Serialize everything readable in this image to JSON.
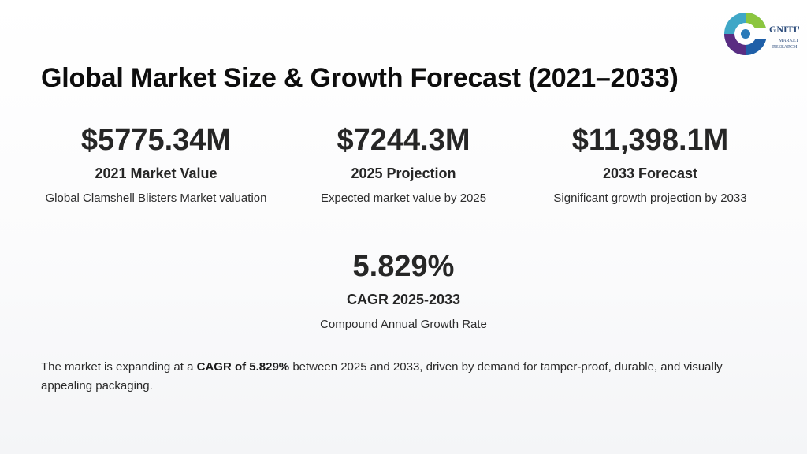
{
  "logo": {
    "brand_text": "GNITIVE",
    "sub_line1": "MARKET",
    "sub_line2": "RESEARCH",
    "colors": [
      "#1f6fb2",
      "#3fb0c9",
      "#8cc63f",
      "#5a2d82"
    ]
  },
  "title": "Global Market Size & Growth Forecast (2021–2033)",
  "stats": [
    {
      "value": "$5775.34M",
      "label": "2021 Market Value",
      "desc": "Global Clamshell Blisters Market valuation"
    },
    {
      "value": "$7244.3M",
      "label": "2025 Projection",
      "desc": "Expected market value by 2025"
    },
    {
      "value": "$11,398.1M",
      "label": "2033 Forecast",
      "desc": "Significant growth projection by 2033"
    },
    {
      "value": "5.829%",
      "label": "CAGR 2025-2033",
      "desc": "Compound Annual Growth Rate"
    }
  ],
  "summary": {
    "prefix": "The market is expanding at a ",
    "highlight": "CAGR of 5.829%",
    "suffix": " between 2025 and 2033, driven by demand for tamper-proof, durable, and visually appealing packaging."
  }
}
